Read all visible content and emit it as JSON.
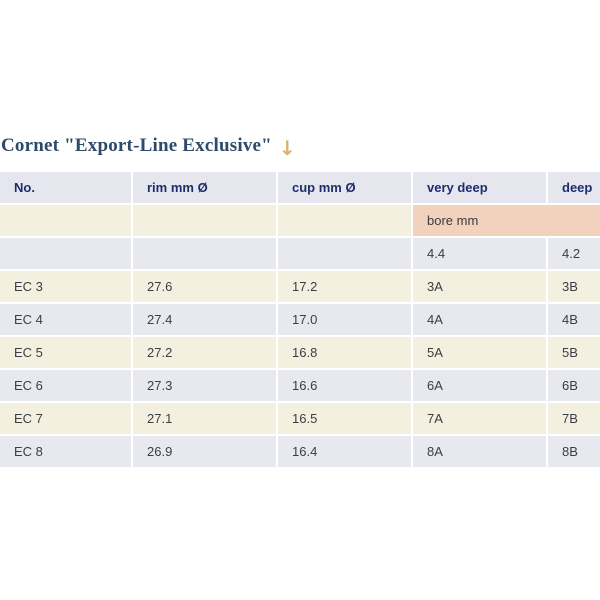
{
  "page": {
    "title": "Cornet \"Export-Line Exclusive\"",
    "arrow_icon": "↓"
  },
  "colors": {
    "title_text": "#2e4a6b",
    "arrow": "#d9b36e",
    "header_bg": "#e6e7ee",
    "header_text": "#1d2e6d",
    "cream_row_bg": "#f3f0df",
    "alt_row_bg": "#e8e8ef",
    "bore_highlight_bg": "#f2d1bd",
    "body_text": "#3d3d46"
  },
  "table": {
    "headers": [
      "No.",
      "rim mm Ø",
      "cup mm Ø",
      "very deep",
      "deep"
    ],
    "bore_label": "bore mm",
    "bore_values": {
      "very_deep": "4.4",
      "deep": "4.2"
    },
    "rows": [
      {
        "no": "EC 3",
        "rim": "27.6",
        "cup": "17.2",
        "very_deep": "3A",
        "deep": "3B"
      },
      {
        "no": "EC 4",
        "rim": "27.4",
        "cup": "17.0",
        "very_deep": "4A",
        "deep": "4B"
      },
      {
        "no": "EC 5",
        "rim": "27.2",
        "cup": "16.8",
        "very_deep": "5A",
        "deep": "5B"
      },
      {
        "no": "EC 6",
        "rim": "27.3",
        "cup": "16.6",
        "very_deep": "6A",
        "deep": "6B"
      },
      {
        "no": "EC 7",
        "rim": "27.1",
        "cup": "16.5",
        "very_deep": "7A",
        "deep": "7B"
      },
      {
        "no": "EC 8",
        "rim": "26.9",
        "cup": "16.4",
        "very_deep": "8A",
        "deep": "8B"
      }
    ]
  }
}
